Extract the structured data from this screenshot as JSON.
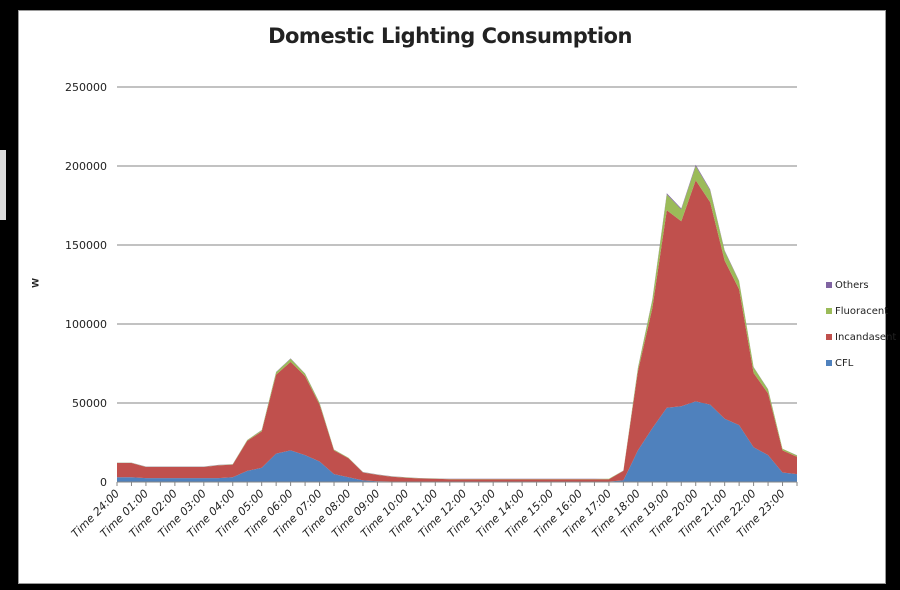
{
  "colors": {
    "CFL": "#4f81bd",
    "Incandasent": "#c0504d",
    "Fluoracent": "#9bbb59",
    "Others": "#8064a2",
    "grid": "#868686",
    "axis": "#868686"
  },
  "chart_data": {
    "type": "area",
    "stacked": true,
    "title": "Domestic Lighting Consumption",
    "xlabel": "",
    "ylabel": "w",
    "ylim": [
      0,
      250000
    ],
    "yticks": [
      "0",
      "50000",
      "100000",
      "150000",
      "200000",
      "250000"
    ],
    "grid": true,
    "legend_position": "right",
    "x": [
      "Time 24:00",
      "",
      "Time 01:00",
      "",
      "Time 02:00",
      "",
      "Time 03:00",
      "",
      "Time 04:00",
      "",
      "Time 05:00",
      "",
      "Time 06:00",
      "",
      "Time 07:00",
      "",
      "Time 08:00",
      "",
      "Time 09:00",
      "",
      "Time 10:00",
      "",
      "Time 11:00",
      "",
      "Time 12:00",
      "",
      "Time 13:00",
      "",
      "Time 14:00",
      "",
      "Time 15:00",
      "",
      "Time 16:00",
      "",
      "Time 17:00",
      "",
      "Time 18:00",
      "",
      "Time 19:00",
      "",
      "Time 20:00",
      "",
      "Time 21:00",
      "",
      "Time 22:00",
      "",
      "Time 23:00",
      ""
    ],
    "series": [
      {
        "name": "CFL",
        "values": [
          3000,
          3000,
          2500,
          2500,
          2500,
          2500,
          2500,
          2500,
          3000,
          7000,
          9000,
          18000,
          20000,
          17000,
          13000,
          5000,
          3000,
          1000,
          500,
          300,
          200,
          200,
          200,
          200,
          200,
          200,
          200,
          200,
          200,
          200,
          200,
          200,
          200,
          200,
          300,
          1000,
          20000,
          34000,
          47000,
          48000,
          51000,
          49000,
          40000,
          36000,
          22000,
          17000,
          6000,
          5000
        ]
      },
      {
        "name": "Incandasent",
        "values": [
          9000,
          9000,
          7000,
          7000,
          7000,
          7000,
          7000,
          8000,
          8000,
          19000,
          23000,
          50000,
          56000,
          50000,
          36000,
          15000,
          12000,
          5000,
          4000,
          3000,
          2500,
          2000,
          1800,
          1500,
          1500,
          1500,
          1500,
          1500,
          1500,
          1500,
          1500,
          1500,
          1500,
          1500,
          1500,
          6000,
          50000,
          76000,
          125000,
          117000,
          140000,
          128000,
          100000,
          86000,
          47000,
          39000,
          14000,
          11000
        ]
      },
      {
        "name": "Fluoracent",
        "values": [
          200,
          200,
          200,
          200,
          200,
          200,
          200,
          200,
          200,
          500,
          800,
          1500,
          2000,
          1500,
          1000,
          500,
          300,
          200,
          200,
          200,
          200,
          200,
          200,
          200,
          200,
          200,
          200,
          200,
          200,
          200,
          200,
          200,
          200,
          200,
          200,
          200,
          2000,
          5000,
          10000,
          7500,
          9000,
          7500,
          6000,
          5000,
          3500,
          2500,
          1000,
          800
        ]
      },
      {
        "name": "Others",
        "values": [
          100,
          100,
          100,
          100,
          100,
          100,
          100,
          100,
          100,
          100,
          100,
          200,
          200,
          200,
          100,
          100,
          100,
          100,
          100,
          100,
          100,
          100,
          100,
          100,
          100,
          100,
          100,
          100,
          100,
          100,
          100,
          100,
          100,
          100,
          100,
          100,
          300,
          500,
          800,
          600,
          800,
          600,
          500,
          400,
          300,
          200,
          100,
          100
        ]
      }
    ]
  }
}
